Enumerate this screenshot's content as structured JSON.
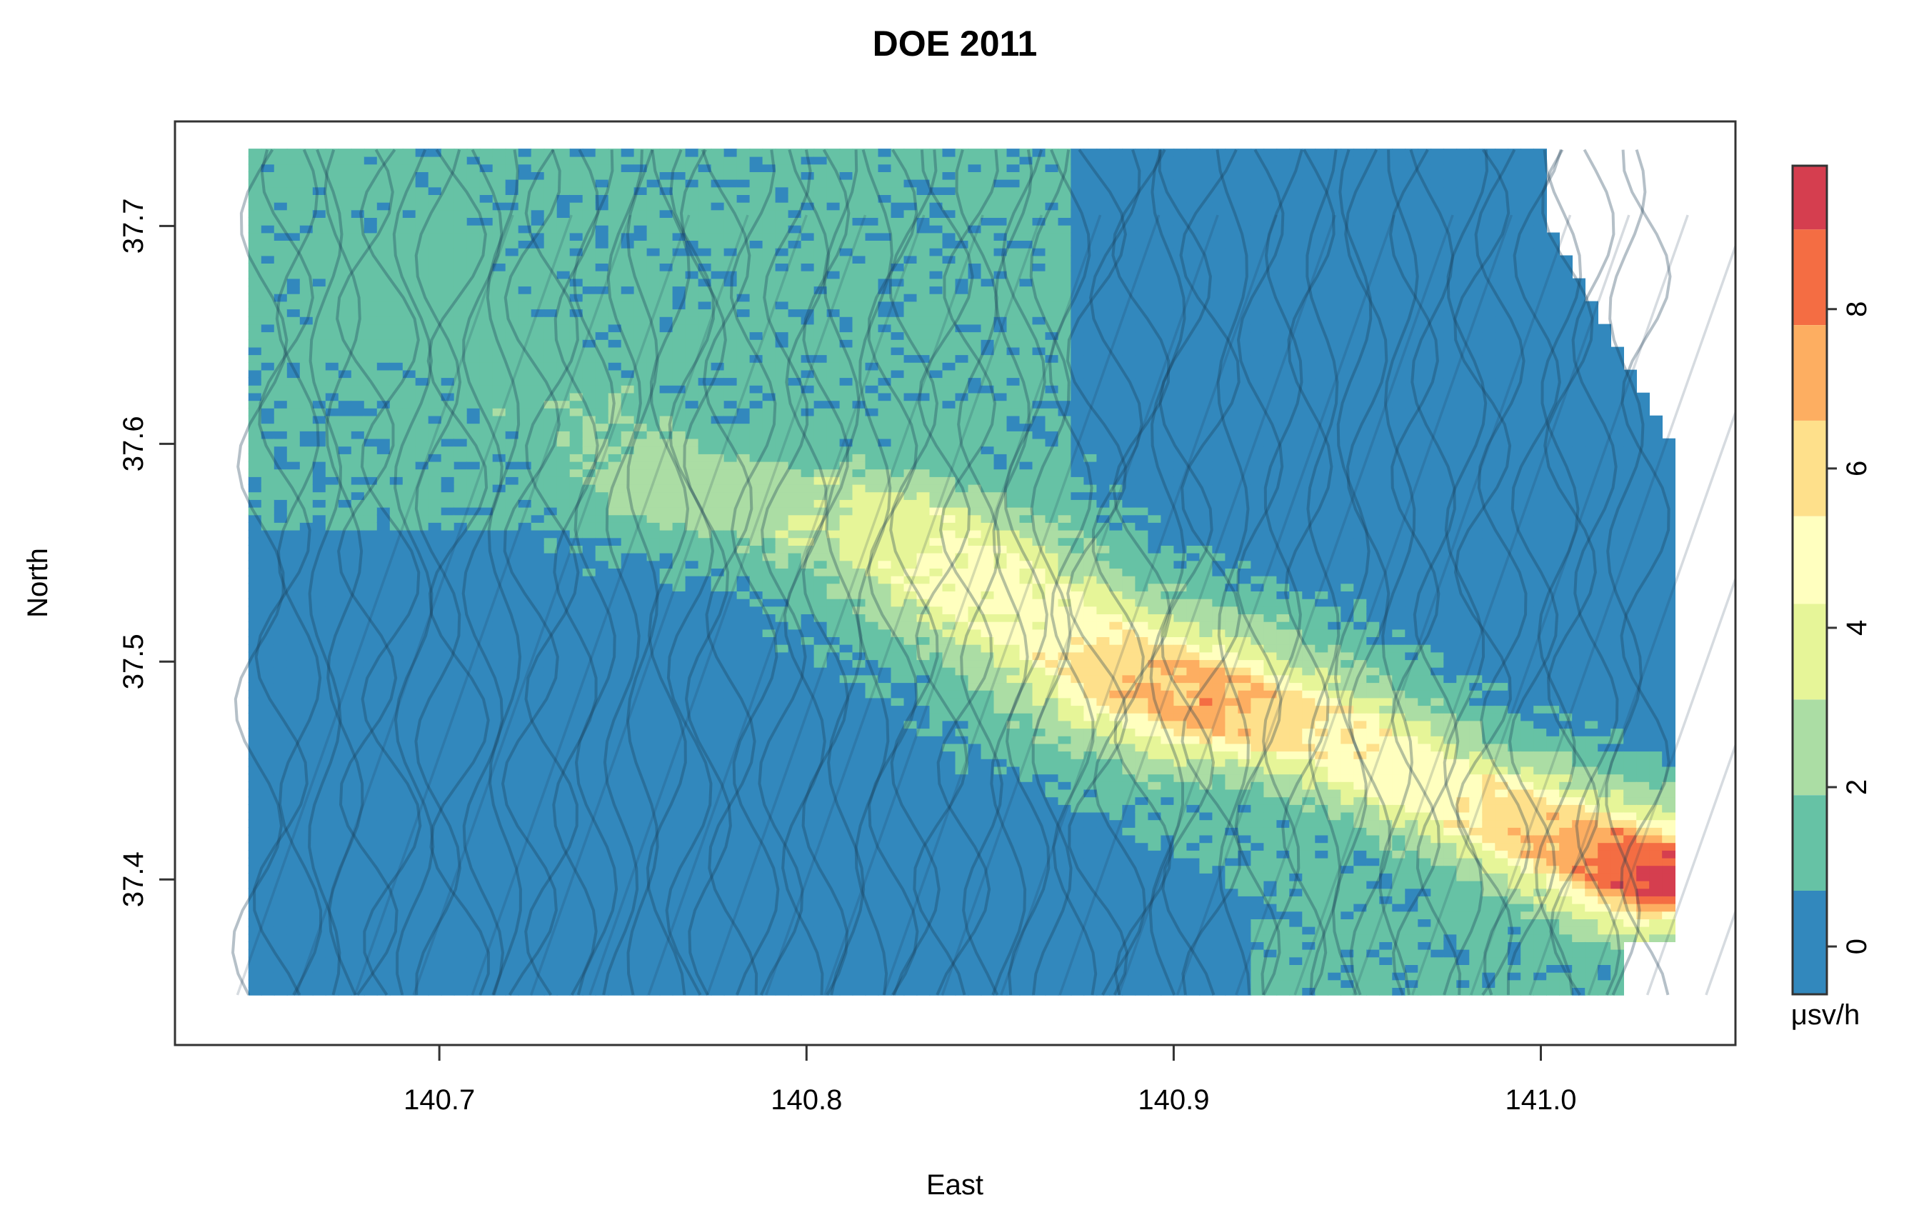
{
  "chart_data": {
    "type": "heatmap",
    "title": "DOE 2011",
    "xlabel": "East",
    "ylabel": "North",
    "xlim": [
      140.628,
      141.053
    ],
    "ylim": [
      37.324,
      37.748
    ],
    "x_ticks": [
      140.7,
      140.8,
      140.9,
      141.0
    ],
    "x_tick_labels": [
      "140.7",
      "140.8",
      "140.9",
      "141.0"
    ],
    "y_ticks": [
      37.4,
      37.5,
      37.6,
      37.7
    ],
    "y_tick_labels": [
      "37.4",
      "37.5",
      "37.6",
      "37.7"
    ],
    "grid": false,
    "legend": {
      "placement": "right",
      "unit_label": "μsv/h",
      "ticks": [
        0,
        2,
        4,
        6,
        8
      ],
      "tick_labels": [
        "0",
        "2",
        "4",
        "6",
        "8"
      ],
      "range": [
        -0.6,
        9.8
      ],
      "bands": [
        {
          "from": -0.6,
          "to": 0.7,
          "color": "#3288bd"
        },
        {
          "from": 0.7,
          "to": 1.9,
          "color": "#66c2a5"
        },
        {
          "from": 1.9,
          "to": 3.1,
          "color": "#abdda4"
        },
        {
          "from": 3.1,
          "to": 4.3,
          "color": "#e6f598"
        },
        {
          "from": 4.3,
          "to": 5.4,
          "color": "#ffffbf"
        },
        {
          "from": 5.4,
          "to": 6.6,
          "color": "#fee08b"
        },
        {
          "from": 6.6,
          "to": 7.8,
          "color": "#fdae61"
        },
        {
          "from": 7.8,
          "to": 9.0,
          "color": "#f46d43"
        },
        {
          "from": 9.0,
          "to": 9.8,
          "color": "#d53e4f"
        }
      ]
    },
    "data_extent": {
      "x": [
        140.648,
        141.034
      ],
      "y": [
        37.347,
        37.735
      ]
    },
    "plume": {
      "direction": "from south-east (141.03, 37.40) toward north-west",
      "centerline": [
        {
          "x": 141.03,
          "y": 37.4,
          "value": 9.3
        },
        {
          "x": 141.0,
          "y": 37.42,
          "value": 6.6
        },
        {
          "x": 140.97,
          "y": 37.44,
          "value": 4.8
        },
        {
          "x": 140.94,
          "y": 37.465,
          "value": 5.1
        },
        {
          "x": 140.91,
          "y": 37.48,
          "value": 7.0
        },
        {
          "x": 140.89,
          "y": 37.49,
          "value": 6.5
        },
        {
          "x": 140.86,
          "y": 37.52,
          "value": 4.4
        },
        {
          "x": 140.84,
          "y": 37.54,
          "value": 4.6
        },
        {
          "x": 140.82,
          "y": 37.56,
          "value": 3.8
        },
        {
          "x": 140.79,
          "y": 37.57,
          "value": 2.6
        },
        {
          "x": 140.76,
          "y": 37.58,
          "value": 2.4
        },
        {
          "x": 140.73,
          "y": 37.62,
          "value": 1.5
        },
        {
          "x": 140.7,
          "y": 37.66,
          "value": 1.3
        },
        {
          "x": 140.68,
          "y": 37.7,
          "value": 1.1
        }
      ],
      "hotspots": [
        {
          "x": 141.025,
          "y": 37.403,
          "value": 9.4
        },
        {
          "x": 141.015,
          "y": 37.418,
          "value": 7.8
        },
        {
          "x": 140.997,
          "y": 37.418,
          "value": 7.2
        },
        {
          "x": 140.907,
          "y": 37.481,
          "value": 8.2
        },
        {
          "x": 140.893,
          "y": 37.488,
          "value": 6.8
        },
        {
          "x": 140.925,
          "y": 37.467,
          "value": 6.2
        },
        {
          "x": 140.975,
          "y": 37.432,
          "value": 5.6
        }
      ]
    },
    "overlay": "semi-transparent dark survey flight-track lines"
  }
}
